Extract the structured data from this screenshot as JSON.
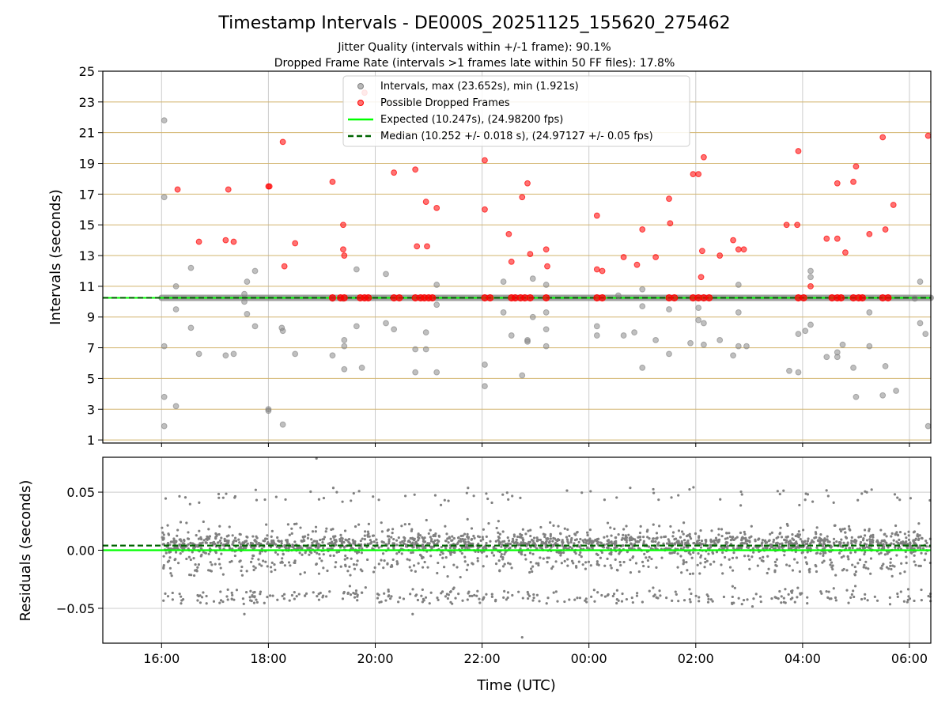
{
  "title": "Timestamp Intervals - DE000S_20251125_155620_275462",
  "subtitle1": "Jitter Quality (intervals within +/-1 frame): 90.1%",
  "subtitle2": "Dropped Frame Rate (intervals >1 frames late within 50 FF files): 17.8%",
  "colors": {
    "intervals": "#808080",
    "dropped": "#ff0000",
    "expected": "#00ff00",
    "median": "#006400",
    "hgrid": "#d2b46e",
    "vgrid": "#cccccc"
  },
  "legend": {
    "intervals": "Intervals, max (23.652s), min (1.921s)",
    "dropped": "Possible Dropped Frames",
    "expected": "Expected (10.247s), (24.98200 fps)",
    "median": "Median (10.252 +/- 0.018 s), (24.97127 +/- 0.05 fps)"
  },
  "chart_data": [
    {
      "type": "scatter",
      "panel": "intervals",
      "ylabel": "Intervals (seconds)",
      "x_unit": "hours since 16:00 UTC (Nov 25)",
      "xlim": [
        -1.1,
        14.4
      ],
      "ylim": [
        0.8,
        25
      ],
      "yticks": [
        1,
        3,
        5,
        7,
        9,
        11,
        13,
        15,
        17,
        19,
        21,
        23,
        25
      ],
      "expected": 10.247,
      "median": 10.252,
      "baseline": {
        "value": 10.25,
        "x_start": 0.0,
        "x_end": 14.4
      },
      "series": [
        {
          "name": "Intervals",
          "points": [
            [
              0.05,
              21.8
            ],
            [
              0.05,
              16.8
            ],
            [
              0.05,
              7.1
            ],
            [
              0.05,
              3.8
            ],
            [
              0.05,
              1.9
            ],
            [
              0.27,
              11.0
            ],
            [
              0.27,
              9.5
            ],
            [
              0.27,
              3.2
            ],
            [
              0.55,
              12.2
            ],
            [
              0.55,
              8.3
            ],
            [
              0.7,
              6.6
            ],
            [
              1.2,
              6.5
            ],
            [
              1.35,
              6.6
            ],
            [
              1.55,
              10.0
            ],
            [
              1.55,
              10.5
            ],
            [
              1.6,
              9.2
            ],
            [
              1.6,
              11.3
            ],
            [
              1.75,
              12.0
            ],
            [
              1.75,
              8.4
            ],
            [
              2.0,
              3.0
            ],
            [
              2.0,
              2.9
            ],
            [
              2.25,
              8.3
            ],
            [
              2.27,
              8.1
            ],
            [
              2.27,
              2.0
            ],
            [
              2.5,
              6.6
            ],
            [
              3.2,
              10.2
            ],
            [
              3.2,
              6.5
            ],
            [
              3.4,
              10.2
            ],
            [
              3.42,
              7.5
            ],
            [
              3.42,
              7.1
            ],
            [
              3.42,
              5.6
            ],
            [
              3.65,
              12.1
            ],
            [
              3.65,
              8.4
            ],
            [
              3.75,
              5.7
            ],
            [
              4.2,
              11.8
            ],
            [
              4.2,
              8.6
            ],
            [
              4.35,
              8.2
            ],
            [
              4.75,
              6.9
            ],
            [
              4.75,
              5.4
            ],
            [
              4.95,
              8.0
            ],
            [
              4.95,
              6.9
            ],
            [
              5.15,
              11.1
            ],
            [
              5.15,
              9.8
            ],
            [
              5.15,
              5.4
            ],
            [
              6.05,
              5.9
            ],
            [
              6.05,
              4.5
            ],
            [
              6.4,
              11.3
            ],
            [
              6.4,
              9.3
            ],
            [
              6.55,
              7.8
            ],
            [
              6.75,
              5.2
            ],
            [
              6.85,
              7.5
            ],
            [
              6.85,
              7.4
            ],
            [
              6.95,
              11.5
            ],
            [
              6.95,
              9.0
            ],
            [
              7.2,
              11.1
            ],
            [
              7.2,
              9.3
            ],
            [
              7.2,
              8.2
            ],
            [
              7.2,
              7.1
            ],
            [
              8.15,
              8.4
            ],
            [
              8.15,
              7.8
            ],
            [
              8.55,
              10.4
            ],
            [
              8.65,
              7.8
            ],
            [
              8.85,
              8.0
            ],
            [
              9.0,
              10.8
            ],
            [
              9.0,
              9.7
            ],
            [
              9.0,
              5.7
            ],
            [
              9.25,
              7.5
            ],
            [
              9.5,
              9.5
            ],
            [
              9.5,
              6.6
            ],
            [
              9.9,
              7.3
            ],
            [
              10.05,
              8.8
            ],
            [
              10.05,
              9.6
            ],
            [
              10.15,
              8.6
            ],
            [
              10.15,
              7.2
            ],
            [
              10.45,
              7.5
            ],
            [
              10.7,
              6.5
            ],
            [
              10.8,
              11.1
            ],
            [
              10.8,
              9.3
            ],
            [
              10.8,
              7.1
            ],
            [
              10.95,
              7.1
            ],
            [
              11.75,
              5.5
            ],
            [
              11.92,
              7.9
            ],
            [
              11.92,
              5.4
            ],
            [
              12.05,
              8.1
            ],
            [
              12.15,
              12.0
            ],
            [
              12.15,
              11.6
            ],
            [
              12.15,
              8.5
            ],
            [
              12.45,
              6.4
            ],
            [
              12.65,
              6.7
            ],
            [
              12.65,
              6.4
            ],
            [
              12.75,
              7.2
            ],
            [
              12.95,
              5.7
            ],
            [
              13.0,
              3.8
            ],
            [
              13.25,
              9.3
            ],
            [
              13.25,
              7.1
            ],
            [
              13.5,
              3.9
            ],
            [
              13.55,
              5.8
            ],
            [
              13.75,
              4.2
            ],
            [
              14.1,
              10.2
            ],
            [
              14.2,
              11.3
            ],
            [
              14.2,
              8.6
            ],
            [
              14.3,
              7.9
            ],
            [
              14.35,
              1.9
            ]
          ]
        },
        {
          "name": "Possible Dropped Frames",
          "points": [
            [
              0.3,
              17.3
            ],
            [
              0.7,
              13.9
            ],
            [
              1.2,
              14.0
            ],
            [
              1.25,
              17.3
            ],
            [
              1.35,
              13.9
            ],
            [
              2.0,
              17.5
            ],
            [
              2.02,
              17.5
            ],
            [
              2.27,
              20.4
            ],
            [
              2.3,
              12.3
            ],
            [
              2.5,
              13.8
            ],
            [
              3.2,
              17.8
            ],
            [
              3.4,
              15.0
            ],
            [
              3.4,
              13.4
            ],
            [
              3.42,
              13.0
            ],
            [
              3.8,
              23.6
            ],
            [
              4.35,
              18.4
            ],
            [
              4.75,
              18.6
            ],
            [
              4.78,
              13.6
            ],
            [
              4.95,
              16.5
            ],
            [
              4.97,
              13.6
            ],
            [
              5.15,
              16.1
            ],
            [
              6.05,
              19.2
            ],
            [
              6.05,
              16.0
            ],
            [
              6.5,
              14.4
            ],
            [
              6.55,
              12.6
            ],
            [
              6.75,
              16.8
            ],
            [
              6.85,
              17.7
            ],
            [
              6.9,
              13.1
            ],
            [
              7.2,
              13.4
            ],
            [
              7.22,
              12.3
            ],
            [
              8.15,
              15.6
            ],
            [
              8.15,
              12.1
            ],
            [
              8.25,
              12.0
            ],
            [
              8.65,
              12.9
            ],
            [
              8.9,
              12.4
            ],
            [
              9.0,
              14.7
            ],
            [
              9.25,
              12.9
            ],
            [
              9.5,
              16.7
            ],
            [
              9.52,
              15.1
            ],
            [
              9.95,
              18.3
            ],
            [
              10.05,
              18.3
            ],
            [
              10.1,
              11.6
            ],
            [
              10.12,
              13.3
            ],
            [
              10.15,
              19.4
            ],
            [
              10.45,
              13.0
            ],
            [
              10.7,
              14.0
            ],
            [
              10.8,
              13.4
            ],
            [
              10.9,
              13.4
            ],
            [
              11.7,
              15.0
            ],
            [
              11.9,
              15.0
            ],
            [
              11.92,
              19.8
            ],
            [
              12.15,
              11.0
            ],
            [
              12.45,
              14.1
            ],
            [
              12.65,
              17.7
            ],
            [
              12.65,
              14.1
            ],
            [
              12.8,
              13.2
            ],
            [
              12.95,
              17.8
            ],
            [
              13.0,
              18.8
            ],
            [
              13.25,
              14.4
            ],
            [
              13.5,
              20.7
            ],
            [
              13.55,
              14.7
            ],
            [
              13.7,
              16.3
            ],
            [
              14.35,
              20.8
            ]
          ]
        }
      ],
      "dropped_near_baseline_x": [
        3.2,
        3.35,
        3.42,
        3.72,
        3.8,
        3.87,
        4.35,
        4.45,
        4.75,
        4.85,
        4.92,
        5.0,
        5.07,
        6.05,
        6.15,
        6.55,
        6.62,
        6.72,
        6.8,
        6.9,
        7.2,
        8.15,
        8.25,
        9.5,
        9.6,
        9.95,
        10.05,
        10.15,
        10.25,
        11.92,
        12.02,
        12.55,
        12.65,
        12.72,
        12.95,
        13.05,
        13.12,
        13.5,
        13.6
      ]
    },
    {
      "type": "scatter",
      "panel": "residuals",
      "ylabel": "Residuals (seconds)",
      "xlabel": "Time (UTC)",
      "x_unit": "hours since 16:00 UTC (Nov 25)",
      "xlim": [
        -1.1,
        14.4
      ],
      "ylim": [
        -0.08,
        0.08
      ],
      "yticks": [
        0.05,
        0.0,
        -0.05
      ],
      "ytick_labels": [
        "0.05",
        "0.00",
        "−0.05"
      ],
      "expected_residual": 0.0,
      "median_residual": 0.004,
      "residual_bands": [
        {
          "center": 0.0045,
          "spread": 0.007,
          "share": 0.6
        },
        {
          "center": 0.014,
          "spread": 0.009,
          "share": 0.12
        },
        {
          "center": -0.012,
          "spread": 0.008,
          "share": 0.13
        },
        {
          "center": -0.04,
          "spread": 0.006,
          "share": 0.11
        },
        {
          "center": 0.047,
          "spread": 0.007,
          "share": 0.04
        }
      ],
      "outliers": [
        [
          2.9,
          0.079
        ],
        [
          4.7,
          -0.055
        ],
        [
          6.75,
          -0.075
        ],
        [
          1.55,
          -0.055
        ]
      ],
      "xticks": [
        0,
        2,
        4,
        6,
        8,
        10,
        12,
        14
      ],
      "xtick_labels": [
        "16:00",
        "18:00",
        "20:00",
        "22:00",
        "00:00",
        "02:00",
        "04:00",
        "06:00"
      ]
    }
  ]
}
